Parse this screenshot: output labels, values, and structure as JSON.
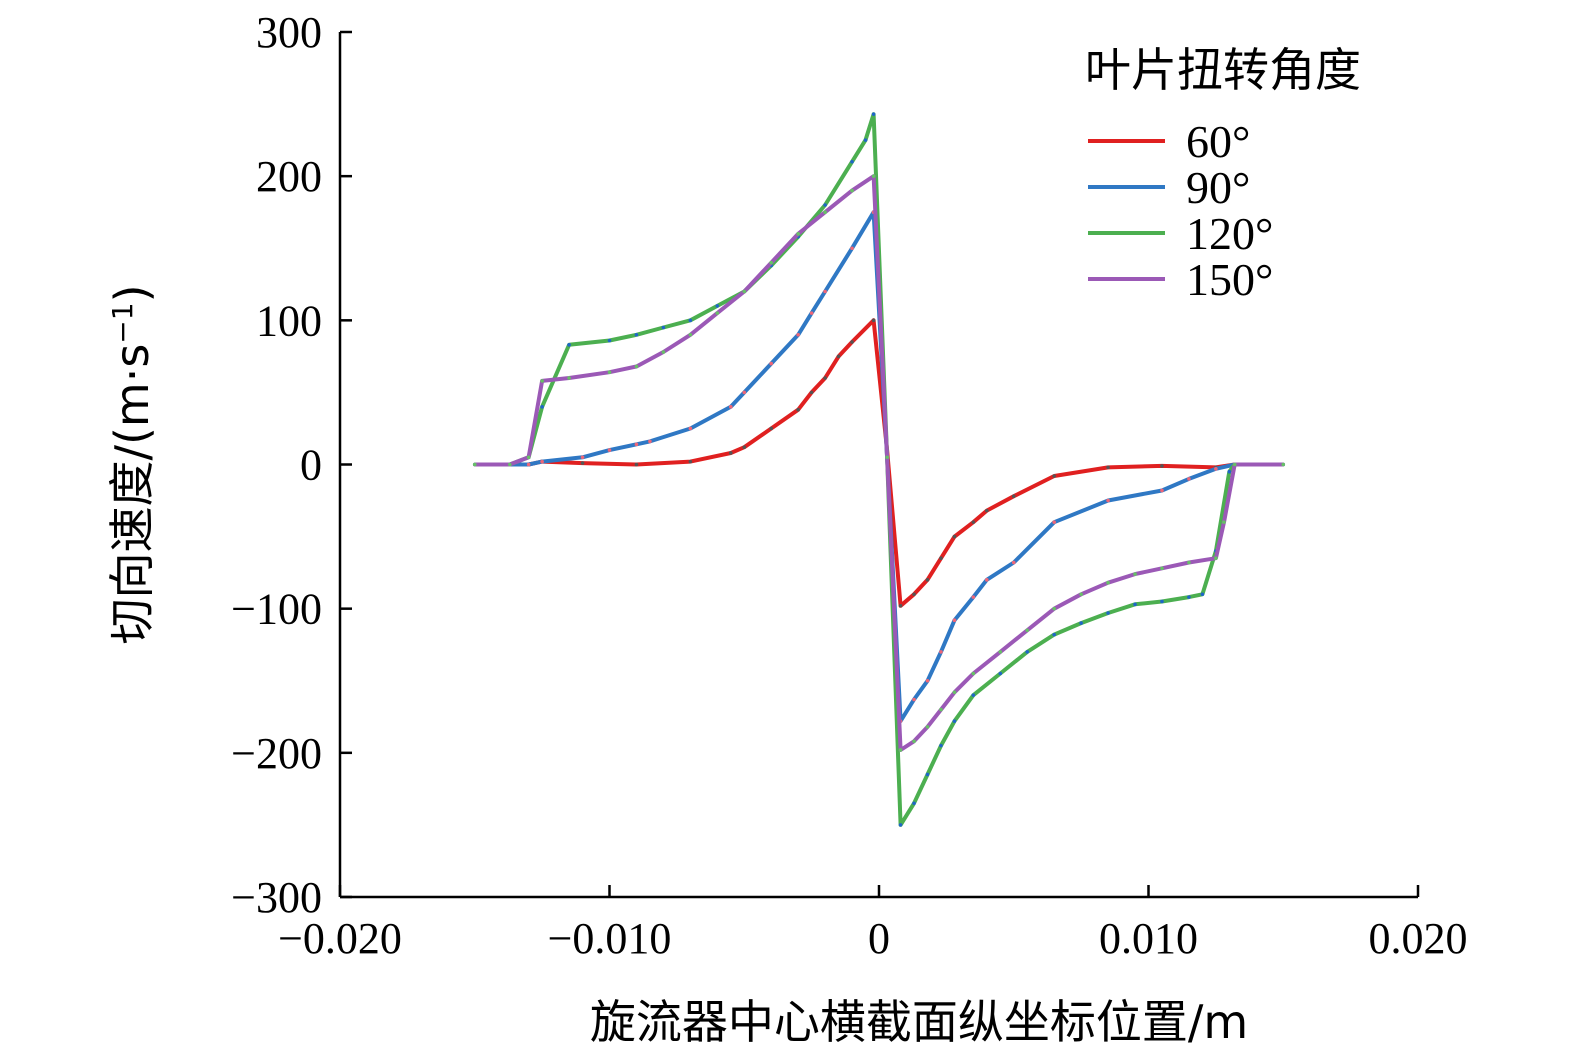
{
  "chart_data": {
    "type": "line",
    "xlabel": "旋流器中心横截面纵坐标位置/m",
    "ylabel": "切向速度/(m·s",
    "ylabel_sup": "−1",
    "ylabel_close": ")",
    "xlim": [
      -0.02,
      0.02
    ],
    "ylim": [
      -300,
      300
    ],
    "xticks": [
      -0.02,
      -0.01,
      0,
      0.01,
      0.02
    ],
    "xtick_labels": [
      "−0.020",
      "−0.010",
      "0",
      "0.010",
      "0.020"
    ],
    "yticks": [
      300,
      200,
      100,
      0,
      -100,
      -200,
      -300
    ],
    "ytick_labels": [
      "300",
      "200",
      "100",
      "0",
      "−100",
      "−200",
      "−300"
    ],
    "legend": {
      "title": "叶片扭转角度",
      "placement": "top-right"
    },
    "series": [
      {
        "name": "60°",
        "color": "#e02020",
        "marker_color": "#555555",
        "x": [
          -0.015,
          -0.0137,
          -0.013,
          -0.0125,
          -0.011,
          -0.009,
          -0.007,
          -0.0055,
          -0.005,
          -0.004,
          -0.003,
          -0.0025,
          -0.002,
          -0.0015,
          -0.001,
          -0.0002,
          0.0003,
          0.0008,
          0.0013,
          0.0018,
          0.0023,
          0.0028,
          0.0035,
          0.004,
          0.005,
          0.0065,
          0.0085,
          0.0105,
          0.0125,
          0.0132,
          0.015
        ],
        "y": [
          0,
          0,
          0,
          2,
          1,
          0,
          2,
          8,
          12,
          25,
          38,
          50,
          60,
          75,
          85,
          100,
          10,
          -98,
          -90,
          -80,
          -65,
          -50,
          -40,
          -32,
          -22,
          -8,
          -2,
          -1,
          -2,
          0,
          0
        ]
      },
      {
        "name": "90°",
        "color": "#2f78c4",
        "marker_color": "#ee6677",
        "x": [
          -0.015,
          -0.0137,
          -0.013,
          -0.0125,
          -0.011,
          -0.01,
          -0.009,
          -0.0085,
          -0.007,
          -0.0055,
          -0.005,
          -0.004,
          -0.003,
          -0.0025,
          -0.002,
          -0.001,
          -0.0002,
          0.0003,
          0.0008,
          0.0013,
          0.0018,
          0.0023,
          0.0028,
          0.0035,
          0.004,
          0.005,
          0.0065,
          0.0085,
          0.0105,
          0.0115,
          0.0125,
          0.0132,
          0.015
        ],
        "y": [
          0,
          0,
          0,
          2,
          5,
          10,
          14,
          16,
          25,
          40,
          50,
          70,
          90,
          105,
          120,
          150,
          175,
          5,
          -178,
          -163,
          -150,
          -130,
          -108,
          -92,
          -80,
          -68,
          -40,
          -25,
          -18,
          -10,
          -3,
          0,
          0
        ]
      },
      {
        "name": "120°",
        "color": "#4caf50",
        "marker_color": "#1f66c8",
        "x": [
          -0.015,
          -0.0137,
          -0.013,
          -0.0125,
          -0.0115,
          -0.01,
          -0.009,
          -0.008,
          -0.007,
          -0.006,
          -0.005,
          -0.004,
          -0.003,
          -0.002,
          -0.001,
          -0.0005,
          -0.0002,
          0.0003,
          0.0008,
          0.0013,
          0.0018,
          0.0023,
          0.0028,
          0.0035,
          0.0045,
          0.0055,
          0.0065,
          0.0075,
          0.0085,
          0.0095,
          0.0105,
          0.0115,
          0.012,
          0.0125,
          0.013,
          0.0132,
          0.015
        ],
        "y": [
          0,
          0,
          5,
          40,
          83,
          86,
          90,
          95,
          100,
          110,
          120,
          138,
          158,
          180,
          210,
          225,
          243,
          5,
          -250,
          -235,
          -215,
          -195,
          -178,
          -160,
          -145,
          -130,
          -118,
          -110,
          -103,
          -97,
          -95,
          -92,
          -90,
          -60,
          -5,
          0,
          0
        ]
      },
      {
        "name": "150°",
        "color": "#9b59b6",
        "marker_color": "#67c067",
        "x": [
          -0.015,
          -0.0137,
          -0.013,
          -0.0125,
          -0.0115,
          -0.01,
          -0.009,
          -0.008,
          -0.007,
          -0.006,
          -0.005,
          -0.004,
          -0.003,
          -0.002,
          -0.001,
          -0.0002,
          0.0003,
          0.0008,
          0.0013,
          0.0018,
          0.0023,
          0.0028,
          0.0035,
          0.0045,
          0.0055,
          0.0065,
          0.0075,
          0.0085,
          0.0095,
          0.0105,
          0.0115,
          0.0125,
          0.0128,
          0.0132,
          0.015
        ],
        "y": [
          0,
          0,
          5,
          58,
          60,
          64,
          68,
          78,
          90,
          105,
          120,
          140,
          160,
          175,
          190,
          200,
          5,
          -198,
          -192,
          -182,
          -170,
          -158,
          -145,
          -130,
          -115,
          -100,
          -90,
          -82,
          -76,
          -72,
          -68,
          -65,
          -40,
          0,
          0
        ]
      }
    ]
  }
}
